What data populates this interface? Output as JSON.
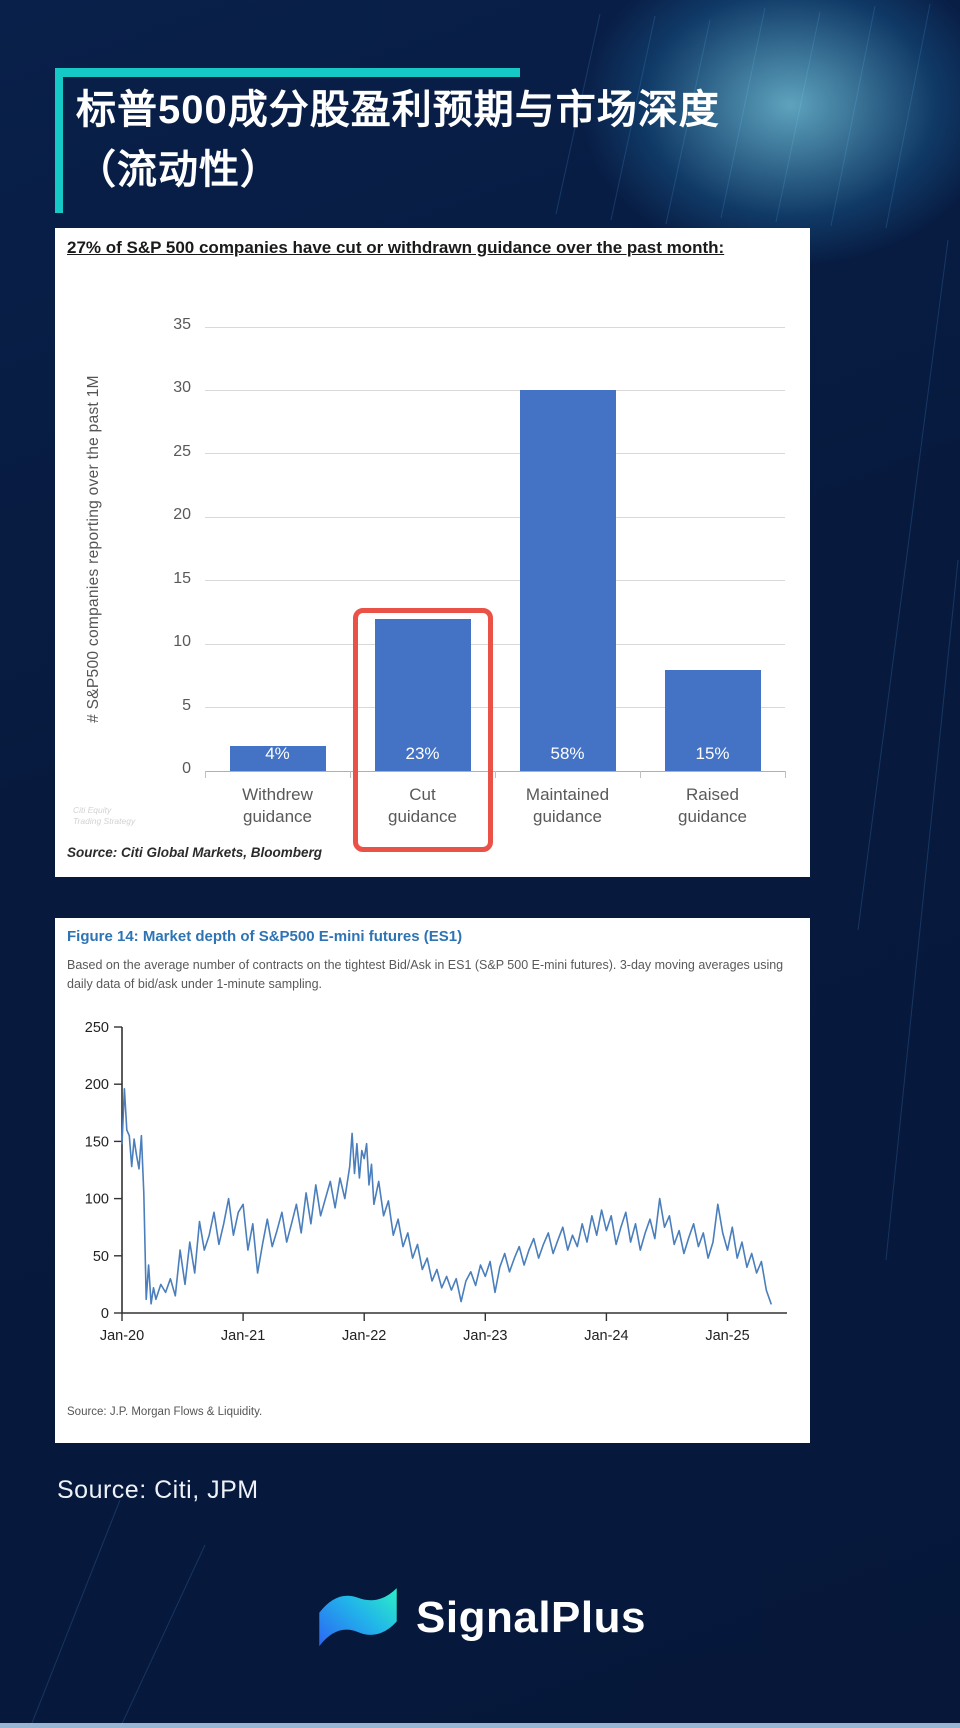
{
  "header": {
    "title_line1": "标普500成分股盈利预期与市场深度",
    "title_line2": "（流动性）"
  },
  "footer": {
    "source": "Source: Citi, JPM",
    "brand": "SignalPlus"
  },
  "colors": {
    "page_bg": "#071a3e",
    "accent": "#15c9c6",
    "bar": "#4472c4",
    "highlight": "#ea5247",
    "line": "#4a7ebc",
    "figure_title": "#2e74b5",
    "axis_text": "#595959"
  },
  "chart_data": [
    {
      "type": "bar",
      "title": "27% of S&P 500 companies have cut or withdrawn guidance over the past month:",
      "ylabel": "# S&P500 companies reporting over the past 1M",
      "categories": [
        "Withdrew guidance",
        "Cut guidance",
        "Maintained guidance",
        "Raised guidance"
      ],
      "values": [
        2,
        12,
        30,
        8
      ],
      "bar_labels": [
        "4%",
        "23%",
        "58%",
        "15%"
      ],
      "ylim": [
        0,
        35
      ],
      "ytick_step": 5,
      "grid": true,
      "highlight_index": 1,
      "watermark_lines": [
        "Citi Equity",
        "Trading Strategy"
      ],
      "source": "Source: Citi Global Markets, Bloomberg"
    },
    {
      "type": "line",
      "figure_label": "Figure 14: Market depth of S&P500 E-mini futures (ES1)",
      "subtitle": "Based on the average number of contracts on the tightest Bid/Ask in ES1 (S&P 500 E-mini futures). 3-day moving averages using daily data of bid/ask under 1-minute sampling.",
      "ylim": [
        0,
        250
      ],
      "ytick_step": 50,
      "grid": false,
      "x_range": [
        2020.0,
        2025.45
      ],
      "xticks": [
        {
          "x": 2020,
          "label": "Jan-20"
        },
        {
          "x": 2021,
          "label": "Jan-21"
        },
        {
          "x": 2022,
          "label": "Jan-22"
        },
        {
          "x": 2023,
          "label": "Jan-23"
        },
        {
          "x": 2024,
          "label": "Jan-24"
        },
        {
          "x": 2025,
          "label": "Jan-25"
        }
      ],
      "points": [
        [
          2020.0,
          148
        ],
        [
          2020.02,
          196
        ],
        [
          2020.04,
          160
        ],
        [
          2020.06,
          155
        ],
        [
          2020.08,
          128
        ],
        [
          2020.1,
          152
        ],
        [
          2020.12,
          138
        ],
        [
          2020.14,
          126
        ],
        [
          2020.16,
          155
        ],
        [
          2020.18,
          105
        ],
        [
          2020.2,
          12
        ],
        [
          2020.22,
          42
        ],
        [
          2020.24,
          8
        ],
        [
          2020.26,
          22
        ],
        [
          2020.28,
          12
        ],
        [
          2020.32,
          25
        ],
        [
          2020.36,
          18
        ],
        [
          2020.4,
          30
        ],
        [
          2020.44,
          15
        ],
        [
          2020.48,
          55
        ],
        [
          2020.52,
          25
        ],
        [
          2020.56,
          62
        ],
        [
          2020.6,
          35
        ],
        [
          2020.64,
          80
        ],
        [
          2020.68,
          55
        ],
        [
          2020.72,
          68
        ],
        [
          2020.76,
          88
        ],
        [
          2020.8,
          60
        ],
        [
          2020.84,
          78
        ],
        [
          2020.88,
          100
        ],
        [
          2020.92,
          68
        ],
        [
          2020.96,
          88
        ],
        [
          2021.0,
          95
        ],
        [
          2021.04,
          55
        ],
        [
          2021.08,
          78
        ],
        [
          2021.12,
          35
        ],
        [
          2021.16,
          60
        ],
        [
          2021.2,
          82
        ],
        [
          2021.24,
          58
        ],
        [
          2021.28,
          72
        ],
        [
          2021.32,
          88
        ],
        [
          2021.36,
          62
        ],
        [
          2021.4,
          78
        ],
        [
          2021.44,
          95
        ],
        [
          2021.48,
          70
        ],
        [
          2021.52,
          105
        ],
        [
          2021.56,
          78
        ],
        [
          2021.6,
          112
        ],
        [
          2021.64,
          85
        ],
        [
          2021.68,
          100
        ],
        [
          2021.72,
          115
        ],
        [
          2021.76,
          92
        ],
        [
          2021.8,
          118
        ],
        [
          2021.84,
          100
        ],
        [
          2021.88,
          128
        ],
        [
          2021.9,
          157
        ],
        [
          2021.92,
          122
        ],
        [
          2021.94,
          148
        ],
        [
          2021.96,
          118
        ],
        [
          2021.98,
          142
        ],
        [
          2022.0,
          135
        ],
        [
          2022.02,
          148
        ],
        [
          2022.04,
          112
        ],
        [
          2022.06,
          130
        ],
        [
          2022.08,
          95
        ],
        [
          2022.12,
          115
        ],
        [
          2022.16,
          85
        ],
        [
          2022.2,
          98
        ],
        [
          2022.24,
          68
        ],
        [
          2022.28,
          82
        ],
        [
          2022.32,
          58
        ],
        [
          2022.36,
          70
        ],
        [
          2022.4,
          48
        ],
        [
          2022.44,
          60
        ],
        [
          2022.48,
          38
        ],
        [
          2022.52,
          48
        ],
        [
          2022.56,
          28
        ],
        [
          2022.6,
          38
        ],
        [
          2022.64,
          22
        ],
        [
          2022.68,
          32
        ],
        [
          2022.72,
          20
        ],
        [
          2022.76,
          30
        ],
        [
          2022.8,
          10
        ],
        [
          2022.84,
          28
        ],
        [
          2022.88,
          36
        ],
        [
          2022.92,
          24
        ],
        [
          2022.96,
          42
        ],
        [
          2023.0,
          32
        ],
        [
          2023.04,
          45
        ],
        [
          2023.08,
          18
        ],
        [
          2023.12,
          40
        ],
        [
          2023.16,
          52
        ],
        [
          2023.2,
          36
        ],
        [
          2023.24,
          48
        ],
        [
          2023.28,
          58
        ],
        [
          2023.32,
          42
        ],
        [
          2023.36,
          55
        ],
        [
          2023.4,
          65
        ],
        [
          2023.44,
          48
        ],
        [
          2023.48,
          60
        ],
        [
          2023.52,
          70
        ],
        [
          2023.56,
          52
        ],
        [
          2023.6,
          64
        ],
        [
          2023.64,
          75
        ],
        [
          2023.68,
          55
        ],
        [
          2023.72,
          68
        ],
        [
          2023.76,
          58
        ],
        [
          2023.8,
          78
        ],
        [
          2023.84,
          62
        ],
        [
          2023.88,
          85
        ],
        [
          2023.92,
          68
        ],
        [
          2023.96,
          90
        ],
        [
          2024.0,
          72
        ],
        [
          2024.04,
          85
        ],
        [
          2024.08,
          60
        ],
        [
          2024.12,
          75
        ],
        [
          2024.16,
          88
        ],
        [
          2024.2,
          62
        ],
        [
          2024.24,
          78
        ],
        [
          2024.28,
          55
        ],
        [
          2024.32,
          70
        ],
        [
          2024.36,
          82
        ],
        [
          2024.4,
          65
        ],
        [
          2024.44,
          100
        ],
        [
          2024.48,
          75
        ],
        [
          2024.52,
          85
        ],
        [
          2024.56,
          60
        ],
        [
          2024.6,
          72
        ],
        [
          2024.64,
          52
        ],
        [
          2024.68,
          66
        ],
        [
          2024.72,
          78
        ],
        [
          2024.76,
          58
        ],
        [
          2024.8,
          70
        ],
        [
          2024.84,
          48
        ],
        [
          2024.88,
          62
        ],
        [
          2024.92,
          95
        ],
        [
          2024.96,
          70
        ],
        [
          2025.0,
          55
        ],
        [
          2025.04,
          75
        ],
        [
          2025.08,
          48
        ],
        [
          2025.12,
          62
        ],
        [
          2025.16,
          40
        ],
        [
          2025.2,
          52
        ],
        [
          2025.24,
          35
        ],
        [
          2025.28,
          45
        ],
        [
          2025.32,
          20
        ],
        [
          2025.36,
          8
        ]
      ],
      "source": "Source: J.P. Morgan Flows & Liquidity."
    }
  ]
}
